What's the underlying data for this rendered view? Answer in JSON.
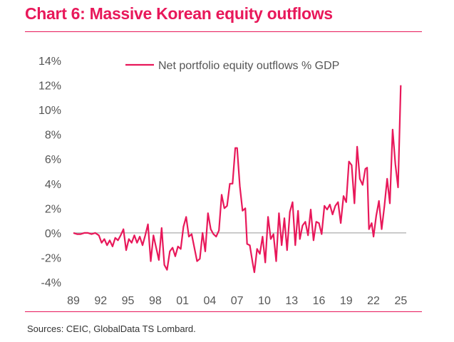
{
  "title": "Chart 6: Massive Korean equity outflows",
  "source": "Sources: CEIC, GlobalData TS Lombard.",
  "colors": {
    "accent": "#e8185a",
    "zero_line": "#999999",
    "text": "#555555"
  },
  "chart_data": {
    "type": "line",
    "ylim": [
      -4,
      14
    ],
    "yticks": [
      "-4%",
      "-2%",
      "0%",
      "2%",
      "4%",
      "6%",
      "8%",
      "10%",
      "12%",
      "14%"
    ],
    "ytick_values": [
      -4,
      -2,
      0,
      2,
      4,
      6,
      8,
      10,
      12,
      14
    ],
    "xlim": [
      1989,
      2025.6
    ],
    "xticks": [
      "89",
      "92",
      "95",
      "98",
      "01",
      "04",
      "07",
      "10",
      "13",
      "16",
      "19",
      "22",
      "25"
    ],
    "xtick_values": [
      1989,
      1992,
      1995,
      1998,
      2001,
      2004,
      2007,
      2010,
      2013,
      2016,
      2019,
      2022,
      2025
    ],
    "legend": {
      "position": "top",
      "label": "Net portfolio equity outflows % GDP"
    },
    "series": [
      {
        "name": "Net portfolio equity outflows % GDP",
        "color": "#e8185a",
        "points": [
          [
            1989.0,
            0.0
          ],
          [
            1989.4,
            -0.1
          ],
          [
            1989.8,
            -0.1
          ],
          [
            1990.2,
            0.0
          ],
          [
            1990.6,
            0.0
          ],
          [
            1991.0,
            -0.1
          ],
          [
            1991.4,
            0.0
          ],
          [
            1991.8,
            -0.2
          ],
          [
            1992.1,
            -0.8
          ],
          [
            1992.4,
            -0.5
          ],
          [
            1992.7,
            -1.0
          ],
          [
            1993.0,
            -0.6
          ],
          [
            1993.3,
            -1.1
          ],
          [
            1993.6,
            -0.4
          ],
          [
            1993.9,
            -0.6
          ],
          [
            1994.2,
            -0.2
          ],
          [
            1994.5,
            0.3
          ],
          [
            1994.8,
            -1.4
          ],
          [
            1995.1,
            -0.5
          ],
          [
            1995.4,
            -0.8
          ],
          [
            1995.7,
            -0.2
          ],
          [
            1996.0,
            -0.8
          ],
          [
            1996.3,
            -0.3
          ],
          [
            1996.6,
            -1.0
          ],
          [
            1996.9,
            -0.2
          ],
          [
            1997.2,
            0.7
          ],
          [
            1997.5,
            -2.3
          ],
          [
            1997.8,
            -0.2
          ],
          [
            1998.1,
            -1.2
          ],
          [
            1998.4,
            -2.2
          ],
          [
            1998.7,
            0.4
          ],
          [
            1999.0,
            -2.6
          ],
          [
            1999.3,
            -3.0
          ],
          [
            1999.6,
            -1.5
          ],
          [
            1999.9,
            -1.2
          ],
          [
            2000.2,
            -1.9
          ],
          [
            2000.5,
            -1.1
          ],
          [
            2000.8,
            -1.3
          ],
          [
            2001.1,
            0.5
          ],
          [
            2001.4,
            1.3
          ],
          [
            2001.7,
            -0.3
          ],
          [
            2002.0,
            -0.1
          ],
          [
            2002.3,
            -1.2
          ],
          [
            2002.6,
            -2.3
          ],
          [
            2002.9,
            -2.1
          ],
          [
            2003.2,
            0.0
          ],
          [
            2003.5,
            -1.5
          ],
          [
            2003.8,
            1.6
          ],
          [
            2004.1,
            0.3
          ],
          [
            2004.4,
            -0.1
          ],
          [
            2004.7,
            -0.3
          ],
          [
            2005.0,
            0.2
          ],
          [
            2005.3,
            3.1
          ],
          [
            2005.6,
            2.0
          ],
          [
            2005.9,
            2.2
          ],
          [
            2006.2,
            4.0
          ],
          [
            2006.5,
            4.0
          ],
          [
            2006.8,
            6.9
          ],
          [
            2007.0,
            6.9
          ],
          [
            2007.3,
            3.8
          ],
          [
            2007.6,
            1.8
          ],
          [
            2007.9,
            2.0
          ],
          [
            2008.1,
            -0.9
          ],
          [
            2008.4,
            -1.0
          ],
          [
            2008.7,
            -2.4
          ],
          [
            2008.9,
            -3.2
          ],
          [
            2009.2,
            -1.3
          ],
          [
            2009.5,
            -1.7
          ],
          [
            2009.8,
            -0.3
          ],
          [
            2010.1,
            -2.4
          ],
          [
            2010.4,
            1.3
          ],
          [
            2010.7,
            -0.5
          ],
          [
            2011.0,
            -0.1
          ],
          [
            2011.3,
            -2.3
          ],
          [
            2011.6,
            1.6
          ],
          [
            2011.9,
            -1.0
          ],
          [
            2012.2,
            1.2
          ],
          [
            2012.5,
            -1.4
          ],
          [
            2012.8,
            1.7
          ],
          [
            2013.1,
            2.5
          ],
          [
            2013.4,
            -1.0
          ],
          [
            2013.7,
            1.8
          ],
          [
            2013.9,
            -0.5
          ],
          [
            2014.2,
            0.6
          ],
          [
            2014.5,
            0.9
          ],
          [
            2014.8,
            -0.2
          ],
          [
            2015.1,
            1.9
          ],
          [
            2015.4,
            -0.6
          ],
          [
            2015.7,
            0.9
          ],
          [
            2016.0,
            0.8
          ],
          [
            2016.3,
            -0.1
          ],
          [
            2016.6,
            2.2
          ],
          [
            2016.9,
            1.9
          ],
          [
            2017.2,
            2.3
          ],
          [
            2017.5,
            1.5
          ],
          [
            2017.8,
            2.2
          ],
          [
            2018.1,
            2.5
          ],
          [
            2018.4,
            0.8
          ],
          [
            2018.7,
            3.0
          ],
          [
            2019.0,
            2.5
          ],
          [
            2019.3,
            5.8
          ],
          [
            2019.6,
            5.5
          ],
          [
            2019.9,
            2.4
          ],
          [
            2020.2,
            7.0
          ],
          [
            2020.5,
            4.4
          ],
          [
            2020.8,
            3.9
          ],
          [
            2021.1,
            5.2
          ],
          [
            2021.3,
            5.3
          ],
          [
            2021.5,
            0.3
          ],
          [
            2021.8,
            0.8
          ],
          [
            2022.0,
            -0.3
          ],
          [
            2022.3,
            1.4
          ],
          [
            2022.6,
            2.6
          ],
          [
            2022.9,
            0.3
          ],
          [
            2023.2,
            2.2
          ],
          [
            2023.5,
            4.4
          ],
          [
            2023.8,
            2.4
          ],
          [
            2024.1,
            8.4
          ],
          [
            2024.4,
            5.6
          ],
          [
            2024.7,
            3.7
          ],
          [
            2025.0,
            12.0
          ]
        ]
      }
    ]
  }
}
